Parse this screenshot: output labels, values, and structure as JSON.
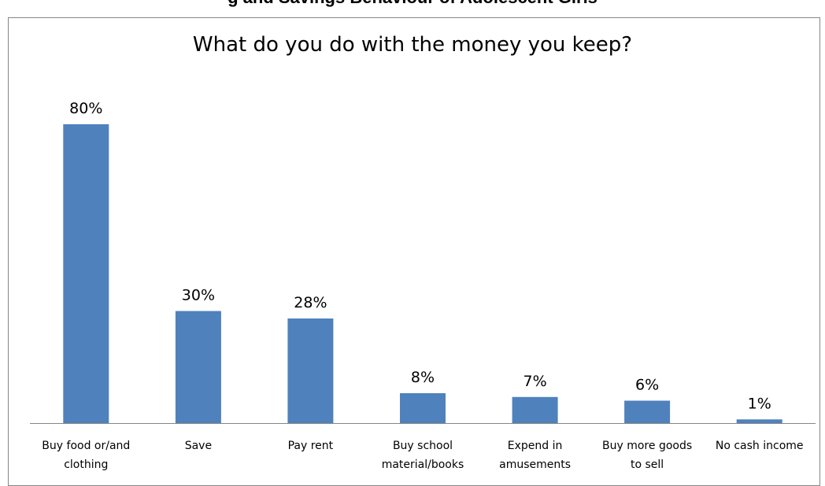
{
  "page": {
    "top_caption": "g and Savings Behaviour of Adolescent Girls"
  },
  "chart_data": {
    "type": "bar",
    "title": "What do you do with the money you keep?",
    "categories": [
      [
        "Buy food or/and",
        "clothing"
      ],
      [
        "Save"
      ],
      [
        "Pay rent"
      ],
      [
        "Buy school",
        "material/books"
      ],
      [
        "Expend in",
        "amusements"
      ],
      [
        "Buy more goods",
        "to sell"
      ],
      [
        "No cash income"
      ]
    ],
    "values": [
      80,
      30,
      28,
      8,
      7,
      6,
      1
    ],
    "data_labels": [
      "80%",
      "30%",
      "28%",
      "8%",
      "7%",
      "6%",
      "1%"
    ],
    "ylim": [
      0,
      80
    ],
    "grid": false,
    "legend": "none",
    "bar_color": "#4f81bd"
  }
}
